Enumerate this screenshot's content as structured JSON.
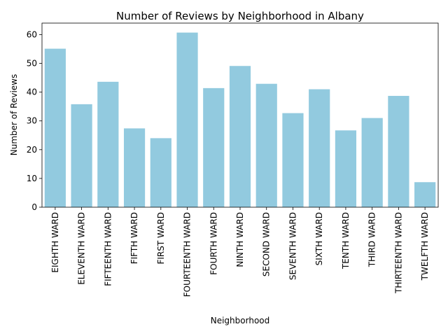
{
  "chart_data": {
    "type": "bar",
    "title": "Number of Reviews by Neighborhood in Albany",
    "xlabel": "Neighborhood",
    "ylabel": "Number of Reviews",
    "categories": [
      "EIGHTH WARD",
      "ELEVENTH WARD",
      "FIFTEENTH WARD",
      "FIFTH WARD",
      "FIRST WARD",
      "FOURTEENTH WARD",
      "FOURTH WARD",
      "NINTH WARD",
      "SECOND WARD",
      "SEVENTH WARD",
      "SIXTH WARD",
      "TENTH WARD",
      "THIRD WARD",
      "THIRTEENTH WARD",
      "TWELFTH WARD"
    ],
    "values": [
      55.1,
      35.8,
      43.6,
      27.4,
      24.0,
      60.7,
      41.4,
      49.1,
      42.9,
      32.7,
      41.0,
      26.7,
      31.0,
      38.7,
      8.7
    ],
    "ylim": [
      0,
      64
    ],
    "yticks": [
      0,
      10,
      20,
      30,
      40,
      50,
      60
    ],
    "bar_color": "#92cadf",
    "grid": false,
    "legend": "none"
  }
}
